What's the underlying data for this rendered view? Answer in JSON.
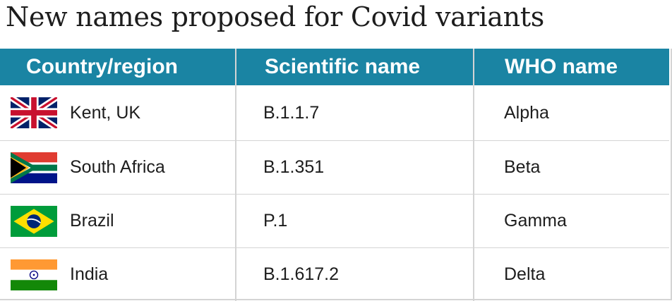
{
  "title": "New names proposed for Covid variants",
  "chart_data": {
    "type": "table",
    "columns": [
      "Country/region",
      "Scientific name",
      "WHO name"
    ],
    "rows": [
      {
        "country": "Kent, UK",
        "scientific": "B.1.1.7",
        "who": "Alpha",
        "flag": "uk-flag-icon"
      },
      {
        "country": "South Africa",
        "scientific": "B.1.351",
        "who": "Beta",
        "flag": "south-africa-flag-icon"
      },
      {
        "country": "Brazil",
        "scientific": "P.1",
        "who": "Gamma",
        "flag": "brazil-flag-icon"
      },
      {
        "country": "India",
        "scientific": "B.1.617.2",
        "who": "Delta",
        "flag": "india-flag-icon"
      }
    ]
  },
  "colors": {
    "header_bg": "#1a84a3",
    "header_text": "#ffffff",
    "grid": "#d4d4d4",
    "text": "#1d1d1d"
  }
}
